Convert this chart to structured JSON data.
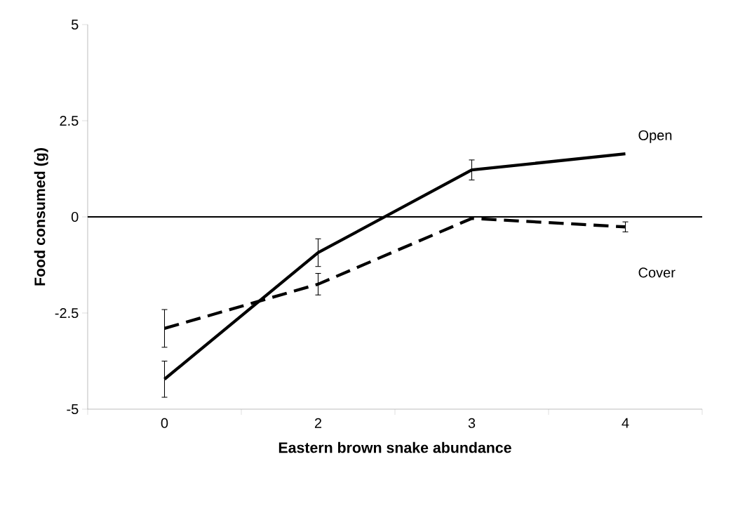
{
  "chart_data": {
    "type": "line",
    "xlabel": "Eastern brown snake abundance",
    "ylabel": "Food consumed (g)",
    "categories": [
      "0",
      "2",
      "3",
      "4"
    ],
    "series": [
      {
        "name": "Open",
        "color": "#000000",
        "line_style": "solid",
        "values": [
          -4.22,
          -0.93,
          1.22,
          1.64
        ],
        "errors": [
          0.47,
          0.36,
          0.26,
          null
        ]
      },
      {
        "name": "Cover",
        "color": "#000000",
        "line_style": "dashed",
        "values": [
          -2.9,
          -1.75,
          -0.04,
          -0.26
        ],
        "errors": [
          0.49,
          0.28,
          null,
          0.13
        ]
      }
    ],
    "ylim": [
      -5,
      5
    ],
    "yticks": [
      -5,
      -2.5,
      0,
      2.5,
      5
    ],
    "ref_lines": [
      {
        "axis": "y",
        "value": 0
      }
    ],
    "grid": false,
    "marker": "none"
  }
}
